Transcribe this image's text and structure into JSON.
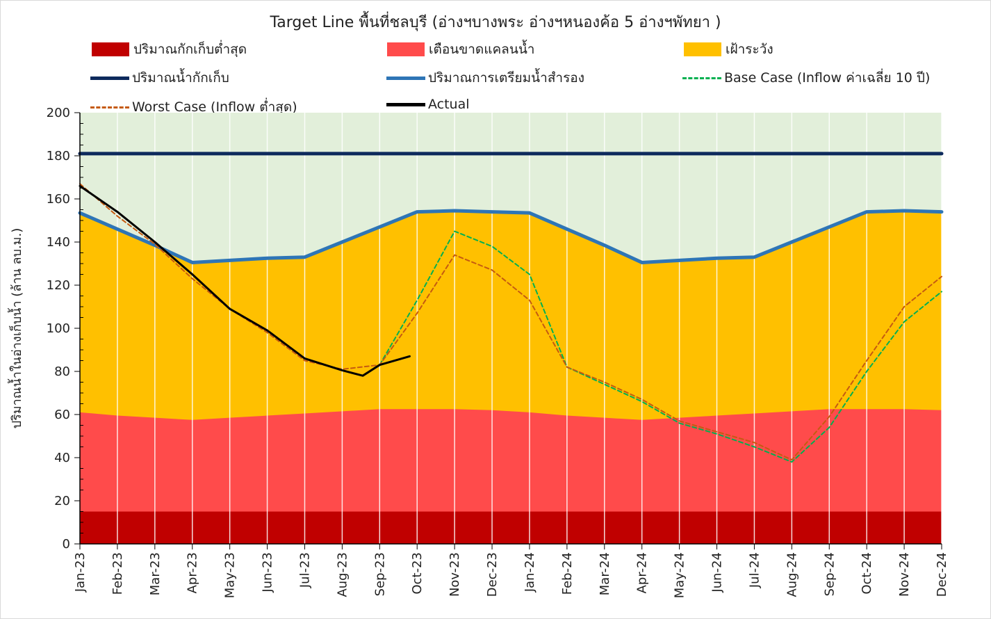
{
  "chart_data": {
    "type": "area",
    "title": "Target Line พื้นที่ชลบุรี (อ่างฯบางพระ อ่างฯหนองค้อ 5 อ่างฯพัทยา )",
    "ylabel": "ปริมาณน้ำในอ่างเก็บน้ำ (ล้าน ลบ.ม.)",
    "xlabel": "",
    "ylim": [
      0,
      200
    ],
    "yticks": [
      0,
      20,
      40,
      60,
      80,
      100,
      120,
      140,
      160,
      180,
      200
    ],
    "categories": [
      "Jan-23",
      "Feb-23",
      "Mar-23",
      "Apr-23",
      "May-23",
      "Jun-23",
      "Jul-23",
      "Aug-23",
      "Sep-23",
      "Oct-23",
      "Nov-23",
      "Dec-23",
      "Jan-24",
      "Feb-24",
      "Mar-24",
      "Apr-24",
      "May-24",
      "Jun-24",
      "Jul-24",
      "Aug-24",
      "Sep-24",
      "Oct-24",
      "Nov-24",
      "Dec-24"
    ],
    "background_top_color": "#e2efda",
    "gridlines": "vertical",
    "series": [
      {
        "name": "ปริมาณกักเก็บต่ำสุด",
        "kind": "area",
        "color": "#c00000",
        "values": [
          15,
          15,
          15,
          15,
          15,
          15,
          15,
          15,
          15,
          15,
          15,
          15,
          15,
          15,
          15,
          15,
          15,
          15,
          15,
          15,
          15,
          15,
          15,
          15
        ]
      },
      {
        "name": "เตือนขาดแคลนน้ำ",
        "kind": "area",
        "color": "#ff4b4b",
        "values": [
          61,
          59.5,
          58.5,
          57.5,
          58.5,
          59.5,
          60.5,
          61.5,
          62.5,
          62.5,
          62.5,
          62,
          61,
          59.5,
          58.5,
          57.5,
          58.5,
          59.5,
          60.5,
          61.5,
          62.5,
          62.5,
          62.5,
          62
        ]
      },
      {
        "name": "เฝ้าระวัง",
        "kind": "area",
        "color": "#ffc000",
        "values": [
          153.5,
          146,
          138.5,
          130.5,
          131.5,
          132.5,
          133,
          140,
          147,
          154,
          154.5,
          154,
          153.5,
          146,
          138.5,
          130.5,
          131.5,
          132.5,
          133,
          140,
          147,
          154,
          154.5,
          154
        ]
      },
      {
        "name": "ปริมาณน้ำกักเก็บ",
        "kind": "line",
        "color": "#0d2a5c",
        "width": 5,
        "values": [
          181,
          181,
          181,
          181,
          181,
          181,
          181,
          181,
          181,
          181,
          181,
          181,
          181,
          181,
          181,
          181,
          181,
          181,
          181,
          181,
          181,
          181,
          181,
          181
        ]
      },
      {
        "name": "ปริมาณการเตรียมน้ำสำรอง",
        "kind": "line",
        "color": "#2e75b6",
        "width": 5,
        "values": [
          153.5,
          146,
          138.5,
          130.5,
          131.5,
          132.5,
          133,
          140,
          147,
          154,
          154.5,
          154,
          153.5,
          146,
          138.5,
          130.5,
          131.5,
          132.5,
          133,
          140,
          147,
          154,
          154.5,
          154
        ]
      },
      {
        "name": "Base Case (Inflow ค่าเฉลี่ย 10 ปี)",
        "kind": "dashed",
        "color": "#00b050",
        "width": 2,
        "values": [
          null,
          null,
          null,
          null,
          null,
          null,
          null,
          null,
          83,
          113,
          145,
          138,
          125,
          82,
          74,
          66,
          56,
          51,
          45,
          38,
          54,
          80,
          103,
          117
        ]
      },
      {
        "name": "Worst Case (Inflow ต่ำสุด)",
        "kind": "dashed",
        "color": "#c55a11",
        "width": 2,
        "values": [
          167,
          152,
          139,
          123,
          109,
          98,
          85,
          81,
          83,
          107,
          134,
          127,
          113,
          82,
          75,
          67,
          57,
          52,
          47,
          39,
          59,
          85,
          110,
          124
        ]
      },
      {
        "name": "Actual",
        "kind": "line",
        "color": "#000000",
        "width": 3,
        "values": [
          166,
          154,
          140,
          125,
          109,
          99,
          86,
          80.5,
          83,
          null,
          null,
          null,
          null,
          null,
          null,
          null,
          null,
          null,
          null,
          null,
          null,
          null,
          null,
          null
        ],
        "extra_points": [
          {
            "x": 7.55,
            "y": 78
          },
          {
            "x": 8.8,
            "y": 87
          }
        ]
      }
    ],
    "legend_placement": "top"
  },
  "legend": [
    {
      "label": "ปริมาณกักเก็บต่ำสุด",
      "swatch": "box",
      "color": "#c00000"
    },
    {
      "label": "เตือนขาดแคลนน้ำ",
      "swatch": "box",
      "color": "#ff4b4b"
    },
    {
      "label": "เฝ้าระวัง",
      "swatch": "box",
      "color": "#ffc000"
    },
    {
      "label": "ปริมาณน้ำกักเก็บ",
      "swatch": "line",
      "color": "#0d2a5c"
    },
    {
      "label": "ปริมาณการเตรียมน้ำสำรอง",
      "swatch": "line",
      "color": "#2e75b6"
    },
    {
      "label": "Base Case (Inflow ค่าเฉลี่ย 10 ปี)",
      "swatch": "dashed",
      "color": "#00b050"
    },
    {
      "label": "Worst Case (Inflow ต่ำสุด)",
      "swatch": "dashed",
      "color": "#c55a11"
    },
    {
      "label": "Actual",
      "swatch": "line",
      "color": "#000000"
    }
  ]
}
